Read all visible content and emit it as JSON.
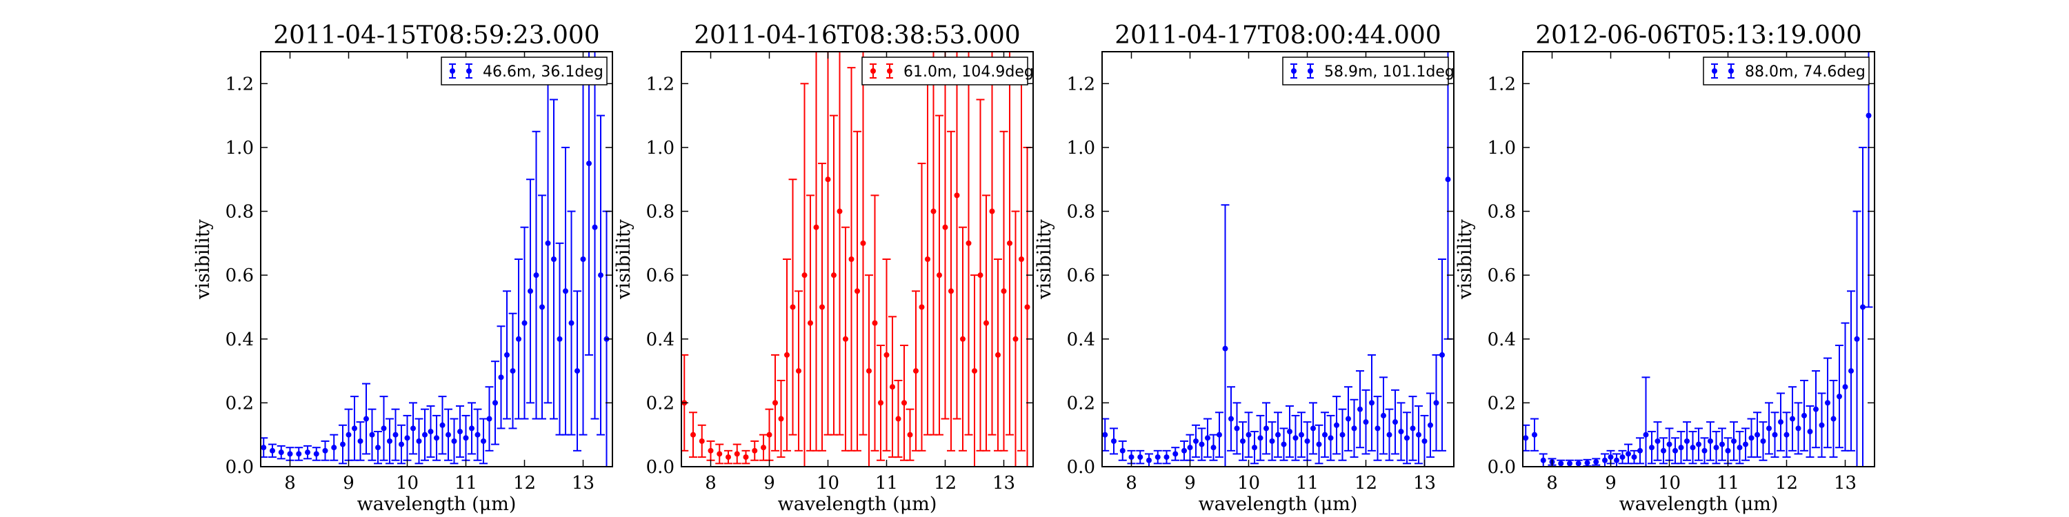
{
  "chart_data": [
    {
      "type": "scatter",
      "title": "2011-04-15T08:59:23.000",
      "xlabel": "wavelength (μm)",
      "ylabel": "visibility",
      "xlim": [
        7.5,
        13.5
      ],
      "ylim": [
        0.0,
        1.3
      ],
      "xticks": [
        "8",
        "9",
        "10",
        "11",
        "12",
        "13"
      ],
      "yticks": [
        "0.0",
        "0.2",
        "0.4",
        "0.6",
        "0.8",
        "1.0",
        "1.2"
      ],
      "legend": "46.6m, 36.1deg",
      "legend_position": "top-right",
      "color": "#0000ff",
      "series": [
        {
          "x": [
            7.55,
            7.7,
            7.85,
            8.0,
            8.15,
            8.3,
            8.45,
            8.6,
            8.75,
            8.9,
            9.0,
            9.1,
            9.2,
            9.3,
            9.4,
            9.5,
            9.6,
            9.7,
            9.8,
            9.9,
            10.0,
            10.1,
            10.2,
            10.3,
            10.4,
            10.5,
            10.6,
            10.7,
            10.8,
            10.9,
            11.0,
            11.1,
            11.2,
            11.3,
            11.4,
            11.5,
            11.6,
            11.7,
            11.8,
            11.9,
            12.0,
            12.1,
            12.2,
            12.3,
            12.4,
            12.5,
            12.6,
            12.7,
            12.8,
            12.9,
            13.0,
            13.1,
            13.2,
            13.3,
            13.4
          ],
          "y": [
            0.06,
            0.05,
            0.045,
            0.04,
            0.04,
            0.045,
            0.04,
            0.05,
            0.06,
            0.07,
            0.1,
            0.12,
            0.08,
            0.15,
            0.1,
            0.06,
            0.12,
            0.08,
            0.1,
            0.07,
            0.09,
            0.12,
            0.08,
            0.1,
            0.11,
            0.09,
            0.13,
            0.1,
            0.08,
            0.11,
            0.09,
            0.12,
            0.1,
            0.08,
            0.15,
            0.2,
            0.28,
            0.35,
            0.3,
            0.4,
            0.45,
            0.55,
            0.6,
            0.5,
            0.7,
            0.65,
            0.4,
            0.55,
            0.45,
            0.3,
            0.65,
            0.95,
            0.75,
            0.6,
            0.4
          ],
          "err": [
            0.03,
            0.02,
            0.02,
            0.02,
            0.02,
            0.02,
            0.02,
            0.03,
            0.04,
            0.06,
            0.08,
            0.1,
            0.06,
            0.11,
            0.08,
            0.05,
            0.1,
            0.07,
            0.08,
            0.06,
            0.07,
            0.08,
            0.07,
            0.08,
            0.08,
            0.07,
            0.09,
            0.08,
            0.07,
            0.08,
            0.07,
            0.08,
            0.08,
            0.07,
            0.1,
            0.13,
            0.16,
            0.2,
            0.18,
            0.25,
            0.3,
            0.35,
            0.45,
            0.35,
            0.5,
            0.5,
            0.3,
            0.45,
            0.35,
            0.25,
            0.55,
            0.6,
            0.6,
            0.5,
            0.4
          ]
        }
      ]
    },
    {
      "type": "scatter",
      "title": "2011-04-16T08:38:53.000",
      "xlabel": "wavelength (μm)",
      "ylabel": "visibility",
      "xlim": [
        7.5,
        13.5
      ],
      "ylim": [
        0.0,
        1.3
      ],
      "xticks": [
        "8",
        "9",
        "10",
        "11",
        "12",
        "13"
      ],
      "yticks": [
        "0.0",
        "0.2",
        "0.4",
        "0.6",
        "0.8",
        "1.0",
        "1.2"
      ],
      "legend": "61.0m, 104.9deg",
      "legend_position": "top-right",
      "color": "#ff0000",
      "series": [
        {
          "x": [
            7.55,
            7.7,
            7.85,
            8.0,
            8.15,
            8.3,
            8.45,
            8.6,
            8.75,
            8.9,
            9.0,
            9.1,
            9.2,
            9.3,
            9.4,
            9.5,
            9.6,
            9.7,
            9.8,
            9.9,
            10.0,
            10.1,
            10.2,
            10.3,
            10.4,
            10.5,
            10.6,
            10.7,
            10.8,
            10.9,
            11.0,
            11.1,
            11.2,
            11.3,
            11.4,
            11.5,
            11.6,
            11.7,
            11.8,
            11.9,
            12.0,
            12.1,
            12.2,
            12.3,
            12.4,
            12.5,
            12.6,
            12.7,
            12.8,
            12.9,
            13.0,
            13.1,
            13.2,
            13.3,
            13.4
          ],
          "y": [
            0.2,
            0.1,
            0.08,
            0.05,
            0.04,
            0.03,
            0.04,
            0.03,
            0.05,
            0.06,
            0.1,
            0.2,
            0.15,
            0.35,
            0.5,
            0.3,
            0.6,
            0.45,
            0.75,
            0.5,
            0.9,
            0.6,
            0.8,
            0.4,
            0.65,
            0.55,
            0.7,
            0.3,
            0.45,
            0.2,
            0.35,
            0.25,
            0.15,
            0.2,
            0.1,
            0.3,
            0.5,
            0.65,
            0.8,
            0.6,
            0.75,
            0.55,
            0.85,
            0.4,
            0.7,
            0.3,
            0.6,
            0.45,
            0.8,
            0.35,
            0.55,
            0.7,
            0.4,
            0.65,
            0.5
          ],
          "err": [
            0.15,
            0.07,
            0.05,
            0.03,
            0.03,
            0.02,
            0.03,
            0.02,
            0.03,
            0.04,
            0.08,
            0.15,
            0.12,
            0.3,
            0.4,
            0.25,
            0.6,
            0.4,
            0.7,
            0.45,
            0.8,
            0.5,
            0.7,
            0.35,
            0.6,
            0.5,
            0.6,
            0.3,
            0.4,
            0.18,
            0.3,
            0.22,
            0.12,
            0.18,
            0.08,
            0.25,
            0.45,
            0.55,
            0.7,
            0.5,
            0.6,
            0.5,
            0.7,
            0.35,
            0.6,
            0.3,
            0.55,
            0.4,
            0.7,
            0.3,
            0.5,
            0.6,
            0.4,
            0.6,
            0.5
          ]
        }
      ]
    },
    {
      "type": "scatter",
      "title": "2011-04-17T08:00:44.000",
      "xlabel": "wavelength (μm)",
      "ylabel": "visibility",
      "xlim": [
        7.5,
        13.5
      ],
      "ylim": [
        0.0,
        1.3
      ],
      "xticks": [
        "8",
        "9",
        "10",
        "11",
        "12",
        "13"
      ],
      "yticks": [
        "0.0",
        "0.2",
        "0.4",
        "0.6",
        "0.8",
        "1.0",
        "1.2"
      ],
      "legend": "58.9m, 101.1deg",
      "legend_position": "top-right",
      "color": "#0000ff",
      "series": [
        {
          "x": [
            7.55,
            7.7,
            7.85,
            8.0,
            8.15,
            8.3,
            8.45,
            8.6,
            8.75,
            8.9,
            9.0,
            9.1,
            9.2,
            9.3,
            9.4,
            9.5,
            9.6,
            9.7,
            9.8,
            9.9,
            10.0,
            10.1,
            10.2,
            10.3,
            10.4,
            10.5,
            10.6,
            10.7,
            10.8,
            10.9,
            11.0,
            11.1,
            11.2,
            11.3,
            11.4,
            11.5,
            11.6,
            11.7,
            11.8,
            11.9,
            12.0,
            12.1,
            12.2,
            12.3,
            12.4,
            12.5,
            12.6,
            12.7,
            12.8,
            12.9,
            13.0,
            13.1,
            13.2,
            13.3,
            13.4
          ],
          "y": [
            0.1,
            0.08,
            0.05,
            0.03,
            0.03,
            0.02,
            0.03,
            0.03,
            0.04,
            0.05,
            0.06,
            0.08,
            0.07,
            0.09,
            0.06,
            0.1,
            0.37,
            0.15,
            0.12,
            0.08,
            0.1,
            0.06,
            0.09,
            0.12,
            0.08,
            0.1,
            0.07,
            0.11,
            0.09,
            0.1,
            0.08,
            0.12,
            0.07,
            0.1,
            0.09,
            0.13,
            0.1,
            0.15,
            0.12,
            0.18,
            0.14,
            0.2,
            0.12,
            0.16,
            0.1,
            0.14,
            0.11,
            0.09,
            0.12,
            0.1,
            0.08,
            0.13,
            0.2,
            0.35,
            0.9
          ],
          "err": [
            0.05,
            0.04,
            0.03,
            0.02,
            0.02,
            0.02,
            0.02,
            0.02,
            0.02,
            0.03,
            0.04,
            0.05,
            0.05,
            0.06,
            0.04,
            0.07,
            0.45,
            0.1,
            0.08,
            0.06,
            0.07,
            0.05,
            0.07,
            0.08,
            0.06,
            0.07,
            0.05,
            0.08,
            0.07,
            0.07,
            0.06,
            0.08,
            0.06,
            0.07,
            0.07,
            0.09,
            0.08,
            0.1,
            0.09,
            0.12,
            0.1,
            0.15,
            0.1,
            0.12,
            0.08,
            0.1,
            0.09,
            0.08,
            0.1,
            0.09,
            0.08,
            0.1,
            0.15,
            0.3,
            0.5
          ]
        }
      ]
    },
    {
      "type": "scatter",
      "title": "2012-06-06T05:13:19.000",
      "xlabel": "wavelength (μm)",
      "ylabel": "visibility",
      "xlim": [
        7.5,
        13.5
      ],
      "ylim": [
        0.0,
        1.3
      ],
      "xticks": [
        "8",
        "9",
        "10",
        "11",
        "12",
        "13"
      ],
      "yticks": [
        "0.0",
        "0.2",
        "0.4",
        "0.6",
        "0.8",
        "1.0",
        "1.2"
      ],
      "legend": "88.0m, 74.6deg",
      "legend_position": "top-right",
      "color": "#0000ff",
      "series": [
        {
          "x": [
            7.55,
            7.7,
            7.85,
            8.0,
            8.15,
            8.3,
            8.45,
            8.6,
            8.75,
            8.9,
            9.0,
            9.1,
            9.2,
            9.3,
            9.4,
            9.5,
            9.6,
            9.7,
            9.8,
            9.9,
            10.0,
            10.1,
            10.2,
            10.3,
            10.4,
            10.5,
            10.6,
            10.7,
            10.8,
            10.9,
            11.0,
            11.1,
            11.2,
            11.3,
            11.4,
            11.5,
            11.6,
            11.7,
            11.8,
            11.9,
            12.0,
            12.1,
            12.2,
            12.3,
            12.4,
            12.5,
            12.6,
            12.7,
            12.8,
            12.9,
            13.0,
            13.1,
            13.2,
            13.3,
            13.4
          ],
          "y": [
            0.09,
            0.1,
            0.02,
            0.015,
            0.01,
            0.01,
            0.01,
            0.012,
            0.015,
            0.02,
            0.03,
            0.02,
            0.03,
            0.04,
            0.03,
            0.05,
            0.1,
            0.06,
            0.08,
            0.05,
            0.07,
            0.05,
            0.06,
            0.08,
            0.06,
            0.07,
            0.05,
            0.08,
            0.06,
            0.07,
            0.05,
            0.08,
            0.06,
            0.07,
            0.09,
            0.1,
            0.08,
            0.12,
            0.1,
            0.14,
            0.1,
            0.15,
            0.12,
            0.16,
            0.11,
            0.18,
            0.13,
            0.2,
            0.15,
            0.22,
            0.25,
            0.3,
            0.4,
            0.5,
            1.1
          ],
          "err": [
            0.04,
            0.05,
            0.02,
            0.01,
            0.01,
            0.01,
            0.01,
            0.01,
            0.01,
            0.02,
            0.02,
            0.02,
            0.02,
            0.03,
            0.02,
            0.04,
            0.18,
            0.05,
            0.06,
            0.04,
            0.05,
            0.04,
            0.05,
            0.06,
            0.05,
            0.05,
            0.04,
            0.06,
            0.05,
            0.05,
            0.04,
            0.06,
            0.05,
            0.05,
            0.06,
            0.07,
            0.06,
            0.08,
            0.07,
            0.09,
            0.07,
            0.1,
            0.08,
            0.11,
            0.08,
            0.12,
            0.1,
            0.14,
            0.12,
            0.16,
            0.2,
            0.25,
            0.4,
            0.5,
            0.6
          ]
        }
      ]
    }
  ]
}
